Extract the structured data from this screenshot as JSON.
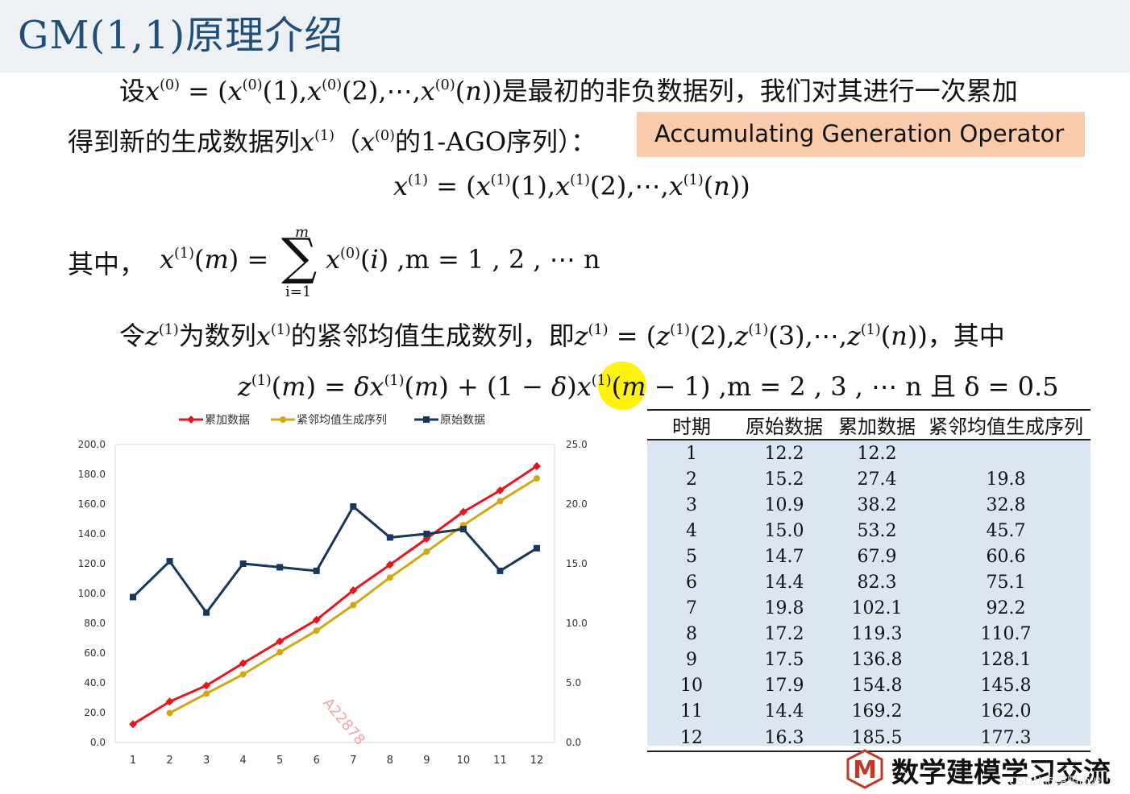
{
  "title": "GM(1,1)原理介绍",
  "text": {
    "l1_prefix": "设",
    "l1_suffix": "是最初的非负数据列，我们对其进行一次累加",
    "l2_prefix": "得到新的生成数据列",
    "l2_mid_open": "（",
    "l2_mid_text": "的1-AGO序列）：",
    "ago_label": "Accumulating Generation Operator",
    "l4_prefix": "其中，",
    "l4_range": ",m = 1 , 2 , ⋯ n",
    "l5_prefix": "令",
    "l5_mid": "为数列",
    "l5_mid2": "的紧邻均值生成数列，即",
    "l5_suffix": "，其中",
    "l6_range": ",m = 2 , 3 , ⋯ n 且 δ = 0.5",
    "sum_top": "m",
    "sum_bottom": "i=1",
    "watermark": "A22878"
  },
  "chart_data": {
    "type": "line",
    "categories": [
      "1",
      "2",
      "3",
      "4",
      "5",
      "6",
      "7",
      "8",
      "9",
      "10",
      "11",
      "12"
    ],
    "series": [
      {
        "name": "累加数据",
        "axis": "left",
        "color": "#e8141e",
        "values": [
          12.2,
          27.4,
          38.2,
          53.2,
          67.9,
          82.3,
          102.1,
          119.3,
          136.8,
          154.8,
          169.2,
          185.5
        ]
      },
      {
        "name": "紧邻均值生成序列",
        "axis": "left",
        "color": "#d4a612",
        "values": [
          null,
          19.8,
          32.8,
          45.7,
          60.6,
          75.1,
          92.2,
          110.7,
          128.1,
          145.8,
          162.0,
          177.3
        ]
      },
      {
        "name": "原始数据",
        "axis": "right",
        "color": "#17375e",
        "values": [
          12.2,
          15.2,
          10.9,
          15.0,
          14.7,
          14.4,
          19.8,
          17.2,
          17.5,
          17.9,
          14.4,
          16.3
        ]
      }
    ],
    "y_left_ticks": [
      "0.0",
      "20.0",
      "40.0",
      "60.0",
      "80.0",
      "100.0",
      "120.0",
      "140.0",
      "160.0",
      "180.0",
      "200.0"
    ],
    "y_right_ticks": [
      "0.0",
      "5.0",
      "10.0",
      "15.0",
      "20.0",
      "25.0"
    ],
    "ylim_left": [
      0,
      200
    ],
    "ylim_right": [
      0,
      25
    ],
    "legend_position": "top",
    "grid": false
  },
  "table": {
    "headers": [
      "时期",
      "原始数据",
      "累加数据",
      "紧邻均值生成序列"
    ],
    "rows": [
      [
        "1",
        "12.2",
        "12.2",
        ""
      ],
      [
        "2",
        "15.2",
        "27.4",
        "19.8"
      ],
      [
        "3",
        "10.9",
        "38.2",
        "32.8"
      ],
      [
        "4",
        "15.0",
        "53.2",
        "45.7"
      ],
      [
        "5",
        "14.7",
        "67.9",
        "60.6"
      ],
      [
        "6",
        "14.4",
        "82.3",
        "75.1"
      ],
      [
        "7",
        "19.8",
        "102.1",
        "92.2"
      ],
      [
        "8",
        "17.2",
        "119.3",
        "110.7"
      ],
      [
        "9",
        "17.5",
        "136.8",
        "128.1"
      ],
      [
        "10",
        "17.9",
        "154.8",
        "145.8"
      ],
      [
        "11",
        "14.4",
        "169.2",
        "162.0"
      ],
      [
        "12",
        "16.3",
        "185.5",
        "177.3"
      ]
    ]
  },
  "logo": {
    "letter": "M",
    "text": "数学建模学习交流"
  },
  "credit": "CSDN @莫陌而沙"
}
